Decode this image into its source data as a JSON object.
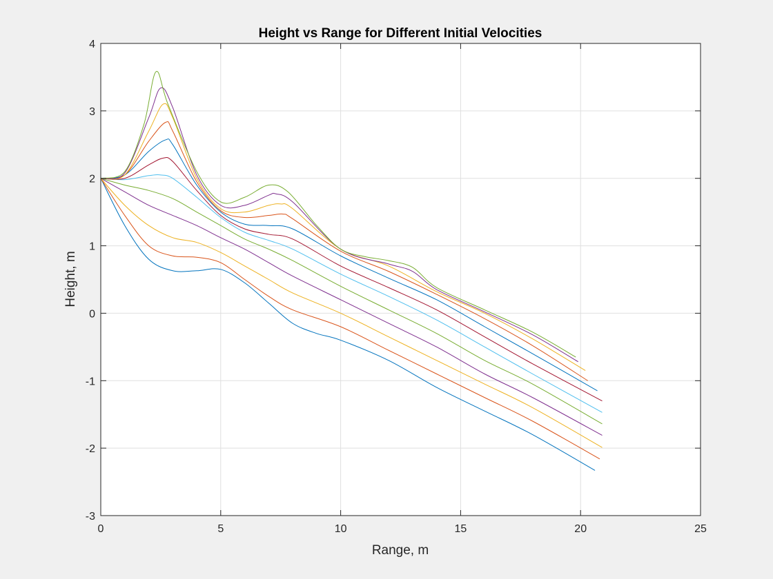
{
  "chart_data": {
    "type": "line",
    "title": "Height vs Range for Different Initial Velocities",
    "xlabel": "Range, m",
    "ylabel": "Height, m",
    "xlim": [
      0,
      25
    ],
    "ylim": [
      -3,
      4
    ],
    "xticks": [
      "0",
      "5",
      "10",
      "15",
      "20",
      "25"
    ],
    "yticks": [
      "-3",
      "-2",
      "-1",
      "0",
      "1",
      "2",
      "3",
      "4"
    ],
    "grid": true,
    "legend": "none",
    "series": [
      {
        "color": "#0072BD",
        "points": [
          [
            0,
            2
          ],
          [
            1,
            1.3
          ],
          [
            2,
            0.8
          ],
          [
            3,
            0.63
          ],
          [
            4,
            0.63
          ],
          [
            5,
            0.65
          ],
          [
            6,
            0.45
          ],
          [
            7,
            0.15
          ],
          [
            8,
            -0.15
          ],
          [
            9,
            -0.3
          ],
          [
            10,
            -0.4
          ],
          [
            12,
            -0.7
          ],
          [
            14,
            -1.1
          ],
          [
            16,
            -1.45
          ],
          [
            18,
            -1.8
          ],
          [
            20.6,
            -2.33
          ]
        ]
      },
      {
        "color": "#D95319",
        "points": [
          [
            0,
            2
          ],
          [
            1,
            1.45
          ],
          [
            2,
            1.0
          ],
          [
            3,
            0.85
          ],
          [
            4,
            0.83
          ],
          [
            5,
            0.75
          ],
          [
            6,
            0.5
          ],
          [
            7,
            0.25
          ],
          [
            8,
            0.05
          ],
          [
            10,
            -0.2
          ],
          [
            12,
            -0.55
          ],
          [
            14,
            -0.9
          ],
          [
            16,
            -1.25
          ],
          [
            18,
            -1.6
          ],
          [
            20.8,
            -2.16
          ]
        ]
      },
      {
        "color": "#EDB120",
        "points": [
          [
            0,
            2
          ],
          [
            1,
            1.6
          ],
          [
            2,
            1.3
          ],
          [
            3,
            1.12
          ],
          [
            4,
            1.05
          ],
          [
            5,
            0.9
          ],
          [
            6,
            0.7
          ],
          [
            7,
            0.5
          ],
          [
            8,
            0.3
          ],
          [
            10,
            0
          ],
          [
            12,
            -0.35
          ],
          [
            14,
            -0.7
          ],
          [
            16,
            -1.05
          ],
          [
            18,
            -1.4
          ],
          [
            20.9,
            -1.99
          ]
        ]
      },
      {
        "color": "#7E2F8E",
        "points": [
          [
            0,
            2
          ],
          [
            1,
            1.8
          ],
          [
            2,
            1.6
          ],
          [
            3,
            1.45
          ],
          [
            4,
            1.3
          ],
          [
            5,
            1.12
          ],
          [
            6,
            0.95
          ],
          [
            7,
            0.75
          ],
          [
            8,
            0.55
          ],
          [
            10,
            0.2
          ],
          [
            12,
            -0.15
          ],
          [
            14,
            -0.5
          ],
          [
            16,
            -0.9
          ],
          [
            18,
            -1.25
          ],
          [
            20.9,
            -1.81
          ]
        ]
      },
      {
        "color": "#77AC30",
        "points": [
          [
            0,
            2
          ],
          [
            1,
            1.9
          ],
          [
            2,
            1.82
          ],
          [
            3,
            1.7
          ],
          [
            4,
            1.5
          ],
          [
            5,
            1.3
          ],
          [
            6,
            1.1
          ],
          [
            7,
            0.95
          ],
          [
            8,
            0.78
          ],
          [
            10,
            0.4
          ],
          [
            12,
            0.05
          ],
          [
            14,
            -0.3
          ],
          [
            16,
            -0.7
          ],
          [
            18,
            -1.05
          ],
          [
            20.9,
            -1.64
          ]
        ]
      },
      {
        "color": "#4DBEEE",
        "points": [
          [
            0,
            2
          ],
          [
            1,
            1.98
          ],
          [
            2,
            2.04
          ],
          [
            2.5,
            2.05
          ],
          [
            3,
            2.0
          ],
          [
            4,
            1.72
          ],
          [
            5,
            1.42
          ],
          [
            6,
            1.2
          ],
          [
            7,
            1.08
          ],
          [
            8,
            0.95
          ],
          [
            10,
            0.58
          ],
          [
            12,
            0.25
          ],
          [
            14,
            -0.1
          ],
          [
            16,
            -0.5
          ],
          [
            18,
            -0.9
          ],
          [
            20.9,
            -1.47
          ]
        ]
      },
      {
        "color": "#A2142F",
        "points": [
          [
            0,
            2
          ],
          [
            1,
            2.0
          ],
          [
            2,
            2.2
          ],
          [
            2.6,
            2.3
          ],
          [
            3,
            2.25
          ],
          [
            4,
            1.82
          ],
          [
            5,
            1.45
          ],
          [
            6,
            1.25
          ],
          [
            7,
            1.17
          ],
          [
            8,
            1.1
          ],
          [
            10,
            0.7
          ],
          [
            12,
            0.38
          ],
          [
            14,
            0.05
          ],
          [
            16,
            -0.35
          ],
          [
            18,
            -0.75
          ],
          [
            20.9,
            -1.3
          ]
        ]
      },
      {
        "color": "#0072BD",
        "points": [
          [
            0,
            2
          ],
          [
            1,
            2.05
          ],
          [
            2,
            2.4
          ],
          [
            2.7,
            2.57
          ],
          [
            3,
            2.5
          ],
          [
            4,
            1.9
          ],
          [
            5,
            1.5
          ],
          [
            6,
            1.32
          ],
          [
            7,
            1.3
          ],
          [
            8,
            1.25
          ],
          [
            10,
            0.85
          ],
          [
            12,
            0.52
          ],
          [
            14,
            0.2
          ],
          [
            16,
            -0.2
          ],
          [
            18,
            -0.6
          ],
          [
            20.7,
            -1.15
          ]
        ]
      },
      {
        "color": "#D95319",
        "points": [
          [
            0,
            2
          ],
          [
            1,
            2.05
          ],
          [
            2,
            2.55
          ],
          [
            2.7,
            2.83
          ],
          [
            3,
            2.7
          ],
          [
            4,
            1.95
          ],
          [
            5,
            1.52
          ],
          [
            6,
            1.42
          ],
          [
            7,
            1.45
          ],
          [
            7.6,
            1.47
          ],
          [
            8,
            1.4
          ],
          [
            10,
            0.92
          ],
          [
            12,
            0.62
          ],
          [
            14,
            0.28
          ],
          [
            16,
            -0.08
          ],
          [
            18,
            -0.48
          ],
          [
            20.3,
            -1.0
          ]
        ]
      },
      {
        "color": "#EDB120",
        "points": [
          [
            0,
            2
          ],
          [
            1,
            2.05
          ],
          [
            2,
            2.7
          ],
          [
            2.6,
            3.1
          ],
          [
            3,
            2.9
          ],
          [
            4,
            2.0
          ],
          [
            5,
            1.55
          ],
          [
            6,
            1.5
          ],
          [
            7,
            1.6
          ],
          [
            7.5,
            1.62
          ],
          [
            8,
            1.55
          ],
          [
            10,
            0.95
          ],
          [
            12,
            0.7
          ],
          [
            14,
            0.32
          ],
          [
            16,
            0
          ],
          [
            18,
            -0.38
          ],
          [
            20.2,
            -0.85
          ]
        ]
      },
      {
        "color": "#7E2F8E",
        "points": [
          [
            0,
            2
          ],
          [
            1,
            2.08
          ],
          [
            2,
            2.9
          ],
          [
            2.5,
            3.34
          ],
          [
            3,
            3.05
          ],
          [
            4,
            2.05
          ],
          [
            5,
            1.6
          ],
          [
            6,
            1.6
          ],
          [
            7,
            1.75
          ],
          [
            7.3,
            1.77
          ],
          [
            8,
            1.65
          ],
          [
            10,
            0.95
          ],
          [
            12,
            0.73
          ],
          [
            13,
            0.62
          ],
          [
            14,
            0.35
          ],
          [
            16,
            0.02
          ],
          [
            18,
            -0.32
          ],
          [
            19.9,
            -0.72
          ]
        ]
      },
      {
        "color": "#77AC30",
        "points": [
          [
            0,
            2
          ],
          [
            1,
            2.1
          ],
          [
            1.8,
            2.8
          ],
          [
            2.3,
            3.58
          ],
          [
            2.8,
            3.1
          ],
          [
            4,
            2.1
          ],
          [
            5,
            1.65
          ],
          [
            6,
            1.72
          ],
          [
            7,
            1.9
          ],
          [
            7.8,
            1.8
          ],
          [
            9,
            1.3
          ],
          [
            10,
            0.95
          ],
          [
            11,
            0.84
          ],
          [
            12,
            0.78
          ],
          [
            13,
            0.68
          ],
          [
            14,
            0.38
          ],
          [
            16,
            0.05
          ],
          [
            18,
            -0.28
          ],
          [
            19.8,
            -0.65
          ]
        ]
      }
    ]
  }
}
